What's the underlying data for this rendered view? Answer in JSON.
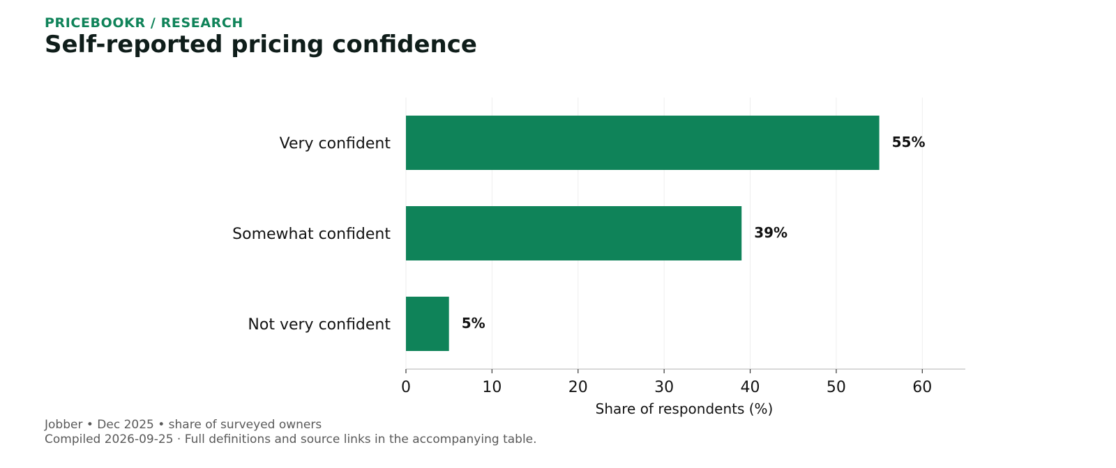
{
  "header": {
    "kicker": "PRICEBOOKR / RESEARCH",
    "title": "Self-reported pricing confidence"
  },
  "chart_data": {
    "type": "bar",
    "orientation": "horizontal",
    "categories": [
      "Very confident",
      "Somewhat confident",
      "Not very confident"
    ],
    "values": [
      55,
      39,
      5
    ],
    "value_labels": [
      "55%",
      "39%",
      "5%"
    ],
    "xlabel": "Share of respondents (%)",
    "ylabel": "",
    "xlim": [
      0,
      65
    ],
    "xticks": [
      0,
      10,
      20,
      30,
      40,
      50,
      60
    ],
    "xtick_labels": [
      "0",
      "10",
      "20",
      "30",
      "40",
      "50",
      "60"
    ],
    "grid": "vertical",
    "legend": "none",
    "bar_color": "#0f8359"
  },
  "footer": {
    "source": "Jobber • Dec 2025 • share of surveyed owners",
    "note": "Compiled 2026-09-25 · Full definitions and source links in the accompanying table."
  },
  "colors": {
    "accent": "#0f8359",
    "title": "#0f1d1a",
    "footer": "#595959",
    "grid": "#eeeeee",
    "axis": "#cccccc"
  }
}
